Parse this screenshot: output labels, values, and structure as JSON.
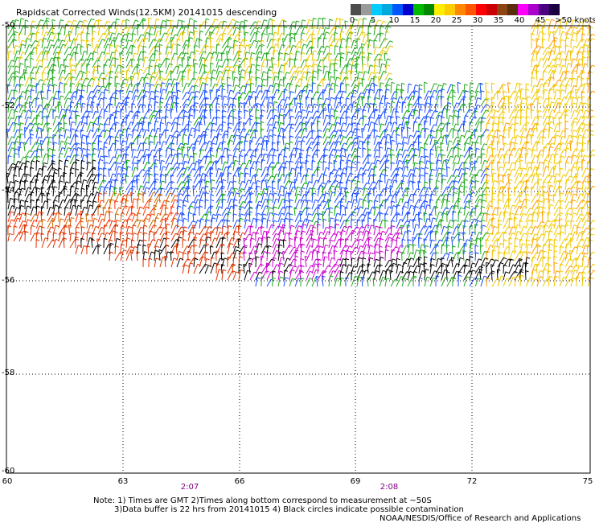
{
  "title": "Rapidscat Corrected Winds(12.5KM) 20141015 descending",
  "legend": {
    "colors": [
      "#4d4d4d",
      "#9a9a9a",
      "#00ccff",
      "#00a8e0",
      "#0055ff",
      "#0000cc",
      "#00bb00",
      "#008800",
      "#ffee00",
      "#ffcc00",
      "#ff8800",
      "#ff5500",
      "#ff0000",
      "#cc0000",
      "#8b4513",
      "#5a2d0c",
      "#ff00ff",
      "#aa00cc",
      "#4b0082",
      "#1a0040"
    ],
    "ticks": [
      "0",
      "5",
      "10",
      "15",
      "20",
      "25",
      "30",
      "35",
      "40",
      "45",
      ">50 knots"
    ]
  },
  "latitudes": [
    "-50",
    "-52",
    "-54",
    "-56",
    "-58",
    "-60"
  ],
  "longitudes": [
    "60",
    "63",
    "66",
    "69",
    "72",
    "75"
  ],
  "times": [
    "2:07",
    "2:08"
  ],
  "notes": {
    "line1": "Note: 1) Times are GMT 2)Times along bottom correspond to measurement at ~50S",
    "line2": "3)Data buffer is 22 hrs from 20141015 4) Black circles indicate possible contamination",
    "line3": "NOAA/NESDIS/Office of Research and Applications"
  }
}
